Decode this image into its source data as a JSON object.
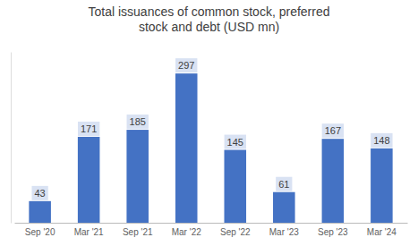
{
  "chart_data": {
    "type": "bar",
    "title": "Total issuances of common stock, preferred\nstock and debt (USD mn)",
    "categories": [
      "Sep '20",
      "Mar '21",
      "Sep '21",
      "Mar '22",
      "Sep '22",
      "Mar '23",
      "Sep '23",
      "Mar '24"
    ],
    "values": [
      43,
      171,
      185,
      297,
      145,
      61,
      167,
      148
    ],
    "color": "#4472C4",
    "ylim": [
      0,
      340
    ],
    "grid": false,
    "data_labels": true,
    "tick_labels": "x"
  }
}
